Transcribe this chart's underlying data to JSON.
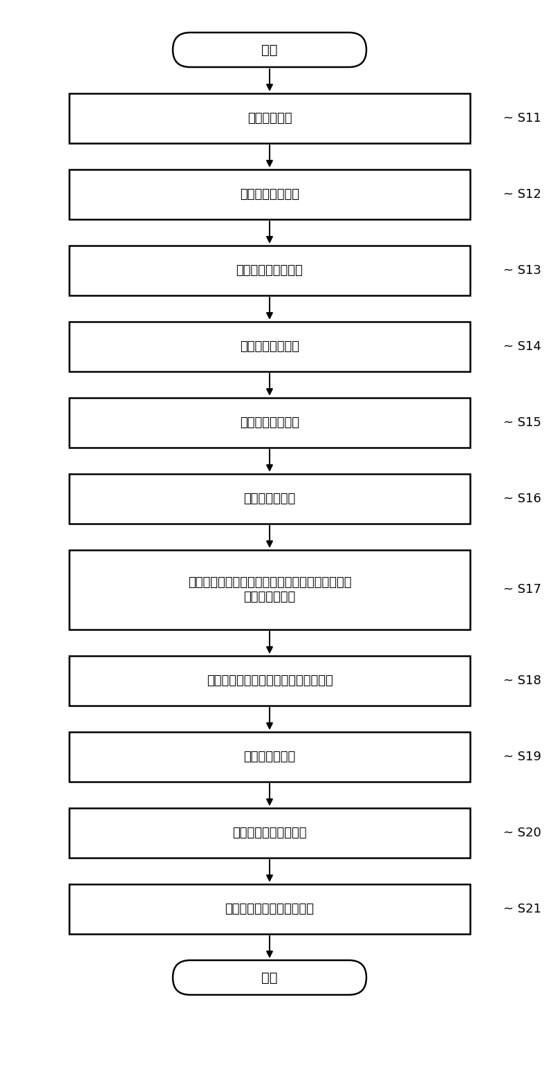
{
  "title": "开始",
  "end_label": "结束",
  "steps": [
    {
      "label": "基板准备工序",
      "tag": "S11",
      "multiline": false
    },
    {
      "label": "高阻抗层形成工序",
      "tag": "S12",
      "multiline": false
    },
    {
      "label": "沟道掺杂层形成工序",
      "tag": "S13",
      "multiline": false
    },
    {
      "label": "基极区域形成工序",
      "tag": "S14",
      "multiline": false
    },
    {
      "label": "低阻抗层形成工序",
      "tag": "S15",
      "multiline": false
    },
    {
      "label": "发射极蚀刻工序",
      "tag": "S16",
      "multiline": false
    },
    {
      "label": "离子注入掩膜形成、基极触点用高浓度离子注入、\n活化热处理工序",
      "tag": "S17",
      "multiline": true
    },
    {
      "label": "界面非活化处理、表面保护膜形成工序",
      "tag": "S18",
      "multiline": false
    },
    {
      "label": "发射极形成工序",
      "tag": "S19",
      "multiline": false
    },
    {
      "label": "基极、集电极形成工序",
      "tag": "S20",
      "multiline": false
    },
    {
      "label": "层间膜与上层电极形成工序",
      "tag": "S21",
      "multiline": false
    }
  ],
  "bg_color": "#ffffff",
  "box_edge_color": "#000000",
  "box_fill_color": "#ffffff",
  "text_color": "#000000",
  "arrow_color": "#000000",
  "font_size": 13,
  "tag_font_size": 13
}
